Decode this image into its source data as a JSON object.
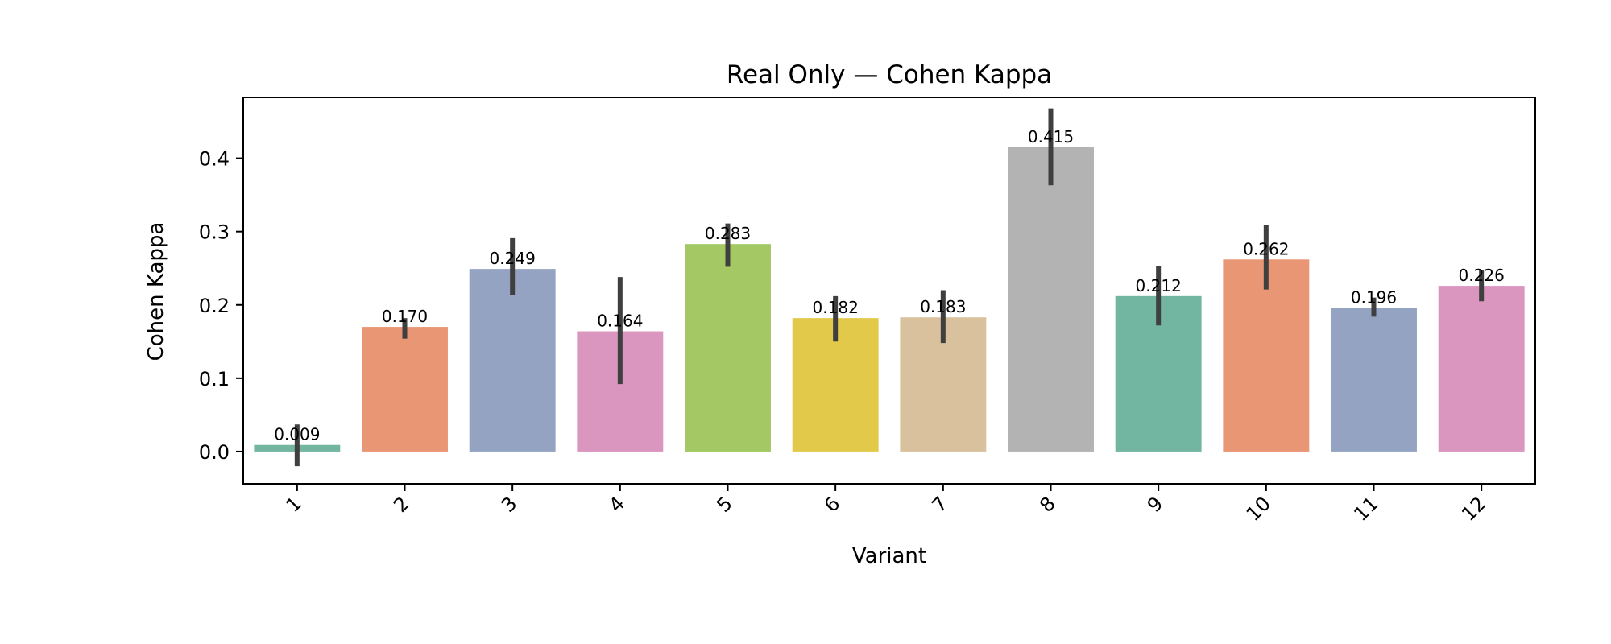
{
  "chart_data": {
    "type": "bar",
    "title": "Real Only — Cohen Kappa",
    "xlabel": "Variant",
    "ylabel": "Cohen Kappa",
    "ylim": [
      -0.044,
      0.483
    ],
    "yticks": [
      0.0,
      0.1,
      0.2,
      0.3,
      0.4
    ],
    "ytick_labels": [
      "0.0",
      "0.1",
      "0.2",
      "0.3",
      "0.4"
    ],
    "grid": false,
    "legend": "none",
    "categories": [
      "1",
      "2",
      "3",
      "4",
      "5",
      "6",
      "7",
      "8",
      "9",
      "10",
      "11",
      "12"
    ],
    "values": [
      0.009,
      0.17,
      0.249,
      0.164,
      0.283,
      0.182,
      0.183,
      0.415,
      0.212,
      0.262,
      0.196,
      0.226
    ],
    "value_labels": [
      "0.009",
      "0.170",
      "0.249",
      "0.164",
      "0.283",
      "0.182",
      "0.183",
      "0.415",
      "0.212",
      "0.262",
      "0.196",
      "0.226"
    ],
    "error_bars": [
      [
        -0.02,
        0.037
      ],
      [
        0.154,
        0.182
      ],
      [
        0.214,
        0.291
      ],
      [
        0.092,
        0.238
      ],
      [
        0.252,
        0.311
      ],
      [
        0.15,
        0.212
      ],
      [
        0.148,
        0.22
      ],
      [
        0.363,
        0.468
      ],
      [
        0.172,
        0.253
      ],
      [
        0.221,
        0.309
      ],
      [
        0.184,
        0.21
      ],
      [
        0.205,
        0.247
      ]
    ],
    "colors": [
      "#72b6a1",
      "#e99675",
      "#95a3c3",
      "#db96c0",
      "#a3c864",
      "#e2c94a",
      "#d9c19e",
      "#b3b3b3",
      "#72b6a1",
      "#e99675",
      "#95a3c3",
      "#db96c0"
    ],
    "error_color": "#3f3f3f"
  }
}
